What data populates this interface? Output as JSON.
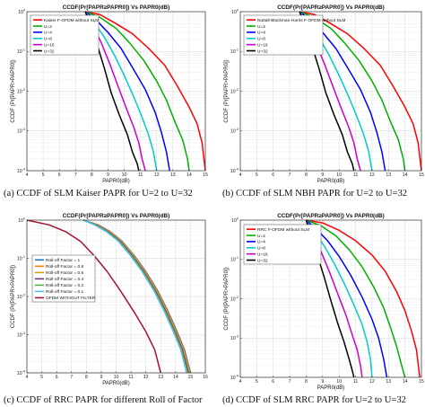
{
  "figure": {
    "captions": [
      "(a) CCDF of SLM Kaiser PAPR for U=2 to U=32",
      "(b) CCDF of SLM NBH PAPR for U=2 to U=32",
      "(c) CCDF of RRC PAPR for different Roll of Factor",
      "(d) CCDF of SLM RRC PAPR for U=2 to U=32"
    ]
  },
  "chart_data": [
    {
      "type": "line",
      "title": "CCDF(Pr[PAPR≥PAPR0]) Vs PAPR0(dB)",
      "xlabel": "PAPR0(dB)",
      "ylabel": "CCDF (Pr[PAPR>PAPR0])",
      "xlim": [
        4,
        15
      ],
      "ylim": [
        0.0001,
        1
      ],
      "yscale": "log",
      "xticks": [
        4,
        5,
        6,
        7,
        8,
        9,
        10,
        11,
        12,
        13,
        14,
        15
      ],
      "yticks": [
        0.0001,
        0.001,
        0.01,
        0.1,
        1
      ],
      "ytick_labels": [
        "10^-4",
        "10^-3",
        "10^-2",
        "10^-1",
        "10^0"
      ],
      "grid": true,
      "legend_position": "top-left",
      "series": [
        {
          "name": "Kaiser F-OFDM without SLM",
          "color": "#ff0000",
          "x": [
            7.6,
            8.5,
            9.5,
            10.5,
            11.5,
            12.5,
            13.3,
            14.0,
            14.5,
            14.8,
            15.0
          ],
          "y": [
            1,
            0.85,
            0.5,
            0.28,
            0.12,
            0.045,
            0.013,
            0.004,
            0.0015,
            0.0005,
            0.0001
          ]
        },
        {
          "name": "U=2",
          "color": "#00b000",
          "x": [
            7.6,
            8.5,
            9.5,
            10.3,
            11.2,
            12.0,
            12.6,
            13.1,
            13.6,
            13.9,
            14.0
          ],
          "y": [
            1,
            0.72,
            0.38,
            0.17,
            0.06,
            0.018,
            0.006,
            0.0018,
            0.0006,
            0.0002,
            0.0001
          ]
        },
        {
          "name": "U=4",
          "color": "#0000ff",
          "x": [
            7.6,
            8.3,
            9.0,
            9.8,
            10.5,
            11.3,
            11.9,
            12.3,
            12.6,
            12.8
          ],
          "y": [
            1,
            0.6,
            0.3,
            0.12,
            0.04,
            0.011,
            0.003,
            0.0009,
            0.0003,
            0.0001
          ]
        },
        {
          "name": "U=8",
          "color": "#00cccc",
          "x": [
            7.6,
            8.2,
            8.8,
            9.4,
            10.0,
            10.6,
            11.1,
            11.5,
            11.8,
            12.0
          ],
          "y": [
            1,
            0.5,
            0.22,
            0.08,
            0.025,
            0.007,
            0.0022,
            0.0008,
            0.0003,
            0.0001
          ]
        },
        {
          "name": "U=16",
          "color": "#cc00cc",
          "x": [
            7.6,
            8.1,
            8.6,
            9.1,
            9.6,
            10.1,
            10.6,
            10.9,
            11.1,
            11.3
          ],
          "y": [
            1,
            0.42,
            0.16,
            0.05,
            0.014,
            0.004,
            0.0012,
            0.0005,
            0.0002,
            0.0001
          ]
        },
        {
          "name": "U=32",
          "color": "#000000",
          "x": [
            7.6,
            8.0,
            8.4,
            8.8,
            9.2,
            9.7,
            10.2,
            10.5,
            10.8,
            10.9
          ],
          "y": [
            1,
            0.36,
            0.12,
            0.035,
            0.009,
            0.0025,
            0.0008,
            0.0003,
            0.00015,
            0.0001
          ]
        }
      ]
    },
    {
      "type": "line",
      "title": "CCDF(Pr[PAPR≥PAPR0]) Vs PAPR0(dB)",
      "xlabel": "PAPR0(dB)",
      "ylabel": "CCDF (Pr[PAPR>PAPR0])",
      "xlim": [
        4,
        15
      ],
      "ylim": [
        0.0001,
        1
      ],
      "yscale": "log",
      "xticks": [
        4,
        5,
        6,
        7,
        8,
        9,
        10,
        11,
        12,
        13,
        14,
        15
      ],
      "yticks": [
        0.0001,
        0.001,
        0.01,
        0.1,
        1
      ],
      "ytick_labels": [
        "10^-4",
        "10^-3",
        "10^-2",
        "10^-1",
        "10^0"
      ],
      "grid": true,
      "legend_position": "top-left",
      "series": [
        {
          "name": "Nuttall-Blackman-Harris F-OFDM without SLM",
          "color": "#ff0000",
          "x": [
            7.6,
            8.5,
            9.5,
            10.5,
            11.5,
            12.5,
            13.3,
            14.0,
            14.5,
            14.8,
            15.0
          ],
          "y": [
            1,
            0.85,
            0.5,
            0.28,
            0.12,
            0.045,
            0.013,
            0.004,
            0.0015,
            0.0005,
            0.0001
          ]
        },
        {
          "name": "U=2",
          "color": "#00b000",
          "x": [
            7.6,
            8.5,
            9.5,
            10.3,
            11.2,
            12.0,
            12.6,
            13.1,
            13.6,
            13.9,
            14.0
          ],
          "y": [
            1,
            0.72,
            0.38,
            0.17,
            0.06,
            0.018,
            0.006,
            0.0018,
            0.0006,
            0.0002,
            0.0001
          ]
        },
        {
          "name": "U=4",
          "color": "#0000ff",
          "x": [
            7.6,
            8.3,
            9.0,
            9.8,
            10.5,
            11.3,
            11.9,
            12.3,
            12.6,
            12.8
          ],
          "y": [
            1,
            0.6,
            0.3,
            0.12,
            0.04,
            0.011,
            0.003,
            0.0009,
            0.0003,
            0.0001
          ]
        },
        {
          "name": "U=8",
          "color": "#00cccc",
          "x": [
            7.6,
            8.2,
            8.8,
            9.4,
            10.0,
            10.6,
            11.1,
            11.5,
            11.8,
            12.0
          ],
          "y": [
            1,
            0.5,
            0.22,
            0.08,
            0.025,
            0.007,
            0.0022,
            0.0008,
            0.0003,
            0.0001
          ]
        },
        {
          "name": "U=16",
          "color": "#cc00cc",
          "x": [
            7.6,
            8.1,
            8.6,
            9.1,
            9.6,
            10.1,
            10.6,
            10.9,
            11.1,
            11.3
          ],
          "y": [
            1,
            0.42,
            0.16,
            0.05,
            0.014,
            0.004,
            0.0012,
            0.0005,
            0.0002,
            0.0001
          ]
        },
        {
          "name": "U=32",
          "color": "#000000",
          "x": [
            7.6,
            8.0,
            8.4,
            8.8,
            9.2,
            9.7,
            10.2,
            10.5,
            10.8,
            10.9
          ],
          "y": [
            1,
            0.36,
            0.12,
            0.035,
            0.009,
            0.0025,
            0.0008,
            0.0003,
            0.00015,
            0.0001
          ]
        }
      ]
    },
    {
      "type": "line",
      "title": "CCDF(Pr[PAPR≥PAPR0]) Vs PAPR0(dB)",
      "xlabel": "PAPR0(dB)",
      "ylabel": "CCDF (Pr[PAPR>PAPR0])",
      "xlim": [
        4,
        16
      ],
      "ylim": [
        0.0001,
        1
      ],
      "yscale": "log",
      "xticks": [
        4,
        5,
        6,
        7,
        8,
        9,
        10,
        11,
        12,
        13,
        14,
        15,
        16
      ],
      "yticks": [
        0.0001,
        0.001,
        0.01,
        0.1,
        1
      ],
      "ytick_labels": [
        "10^-4",
        "10^-3",
        "10^-2",
        "10^-1",
        "10^0"
      ],
      "grid": true,
      "legend_position": "center-left",
      "series": [
        {
          "name": "Roll-off Factor = 1",
          "color": "#1f77b4",
          "x": [
            7.8,
            8.8,
            9.6,
            10.4,
            11.2,
            12.0,
            12.8,
            13.5,
            14.1,
            14.6,
            15.0
          ],
          "y": [
            1,
            0.75,
            0.5,
            0.28,
            0.12,
            0.045,
            0.014,
            0.004,
            0.0012,
            0.0004,
            0.0001
          ]
        },
        {
          "name": "Roll-off Factor = 0.8",
          "color": "#ff7f0e",
          "x": [
            7.8,
            8.75,
            9.55,
            10.35,
            11.15,
            11.95,
            12.75,
            13.45,
            14.05,
            14.55,
            14.95
          ],
          "y": [
            1,
            0.75,
            0.5,
            0.28,
            0.12,
            0.045,
            0.014,
            0.004,
            0.0012,
            0.0004,
            0.0001
          ]
        },
        {
          "name": "Roll-off Factor = 0.6",
          "color": "#d4a000",
          "x": [
            7.8,
            8.7,
            9.5,
            10.3,
            11.1,
            11.9,
            12.7,
            13.4,
            14.0,
            14.5,
            14.9
          ],
          "y": [
            1,
            0.75,
            0.5,
            0.28,
            0.12,
            0.045,
            0.014,
            0.004,
            0.0012,
            0.0004,
            0.0001
          ]
        },
        {
          "name": "Roll-off Factor = 0.4",
          "color": "#7e2f8e",
          "x": [
            7.8,
            8.65,
            9.45,
            10.25,
            11.05,
            11.85,
            12.65,
            13.35,
            13.95,
            14.45,
            14.85
          ],
          "y": [
            1,
            0.75,
            0.5,
            0.28,
            0.12,
            0.045,
            0.014,
            0.004,
            0.0012,
            0.0004,
            0.0001
          ]
        },
        {
          "name": "Roll-off Factor = 0.2",
          "color": "#4daf4a",
          "x": [
            7.8,
            8.6,
            9.4,
            10.2,
            11.0,
            11.8,
            12.6,
            13.3,
            13.9,
            14.4,
            14.8
          ],
          "y": [
            1,
            0.75,
            0.5,
            0.28,
            0.12,
            0.045,
            0.014,
            0.004,
            0.0012,
            0.0004,
            0.0001
          ]
        },
        {
          "name": "Roll-off Factor = 0.1",
          "color": "#4dbeee",
          "x": [
            7.8,
            8.55,
            9.35,
            10.15,
            10.95,
            11.75,
            12.55,
            13.25,
            13.85,
            14.35,
            14.75
          ],
          "y": [
            1,
            0.75,
            0.5,
            0.28,
            0.12,
            0.045,
            0.014,
            0.004,
            0.0012,
            0.0004,
            0.0001
          ]
        },
        {
          "name": "OFDM WITHOUT FILTER",
          "color": "#a2142f",
          "x": [
            4.0,
            5.5,
            6.6,
            7.6,
            8.5,
            9.4,
            10.3,
            11.2,
            12.0,
            12.6,
            13.0
          ],
          "y": [
            1,
            0.75,
            0.5,
            0.28,
            0.12,
            0.045,
            0.014,
            0.004,
            0.0012,
            0.0004,
            0.0001
          ]
        }
      ]
    },
    {
      "type": "line",
      "title": "CCDF(Pr[PAPR≥PAPR0]) Vs PAPR0(dB)",
      "xlabel": "PAPR0(dB)",
      "ylabel": "CCDF (Pr[PAPR>PAPR0])",
      "xlim": [
        4,
        15
      ],
      "ylim": [
        0.0001,
        1
      ],
      "yscale": "log",
      "xticks": [
        4,
        5,
        6,
        7,
        8,
        9,
        10,
        11,
        12,
        13,
        14,
        15
      ],
      "yticks": [
        0.0001,
        0.001,
        0.01,
        0.1,
        1
      ],
      "ytick_labels": [
        "10^-4",
        "10^-3",
        "10^-2",
        "10^-1",
        "10^0"
      ],
      "grid": true,
      "legend_position": "top-left",
      "series": [
        {
          "name": "RRC F-OFDM without SLM",
          "color": "#ff0000",
          "x": [
            8.0,
            9.0,
            10.0,
            11.0,
            12.0,
            12.8,
            13.5,
            14.0,
            14.4,
            14.7,
            14.9
          ],
          "y": [
            1,
            0.85,
            0.55,
            0.3,
            0.13,
            0.05,
            0.015,
            0.005,
            0.0015,
            0.0005,
            0.0001
          ]
        },
        {
          "name": "U=2",
          "color": "#00b000",
          "x": [
            8.0,
            8.9,
            9.8,
            10.6,
            11.4,
            12.1,
            12.7,
            13.1,
            13.5,
            13.8,
            14.0
          ],
          "y": [
            1,
            0.72,
            0.4,
            0.18,
            0.065,
            0.02,
            0.006,
            0.002,
            0.0006,
            0.0002,
            0.0001
          ]
        },
        {
          "name": "U=4",
          "color": "#0000ff",
          "x": [
            8.0,
            8.6,
            9.3,
            10.0,
            10.7,
            11.4,
            12.0,
            12.4,
            12.7,
            12.9
          ],
          "y": [
            1,
            0.6,
            0.3,
            0.12,
            0.04,
            0.011,
            0.003,
            0.001,
            0.0003,
            0.0001
          ]
        },
        {
          "name": "U=8",
          "color": "#00cccc",
          "x": [
            8.0,
            8.5,
            9.1,
            9.7,
            10.3,
            10.9,
            11.4,
            11.7,
            11.9,
            12.0
          ],
          "y": [
            1,
            0.5,
            0.22,
            0.08,
            0.025,
            0.007,
            0.0022,
            0.0008,
            0.0003,
            0.0001
          ]
        },
        {
          "name": "U=16",
          "color": "#cc00cc",
          "x": [
            8.0,
            8.4,
            8.9,
            9.4,
            9.9,
            10.4,
            10.8,
            11.1,
            11.3,
            11.4
          ],
          "y": [
            1,
            0.42,
            0.16,
            0.05,
            0.014,
            0.004,
            0.0012,
            0.0005,
            0.0002,
            0.0001
          ]
        },
        {
          "name": "U=32",
          "color": "#000000",
          "x": [
            8.0,
            8.3,
            8.7,
            9.1,
            9.5,
            9.9,
            10.3,
            10.6,
            10.8,
            10.9
          ],
          "y": [
            1,
            0.36,
            0.12,
            0.035,
            0.009,
            0.0025,
            0.0008,
            0.0003,
            0.00015,
            0.0001
          ]
        }
      ]
    }
  ]
}
